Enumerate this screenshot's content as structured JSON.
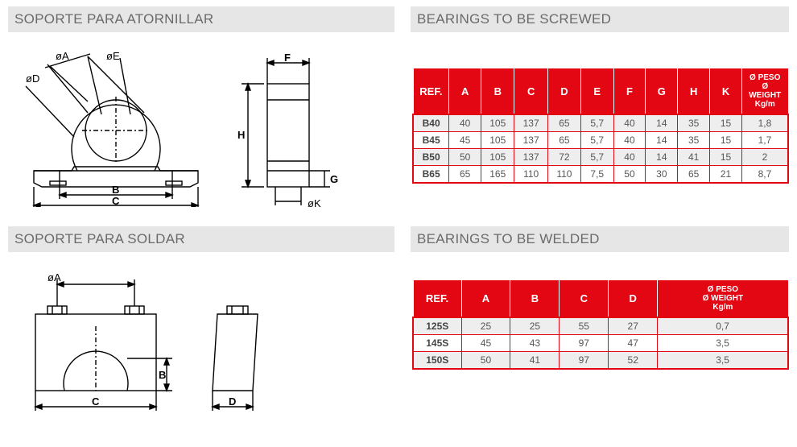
{
  "section1": {
    "title_left": "SOPORTE PARA ATORNILLAR",
    "title_right": "BEARINGS TO BE SCREWED",
    "table": {
      "headers": [
        "REF.",
        "A",
        "B",
        "C",
        "D",
        "E",
        "F",
        "G",
        "H",
        "K"
      ],
      "weight_h1": "Ø PESO",
      "weight_h2": "Ø WEIGHT",
      "weight_h3": "Kg/m",
      "rows": [
        [
          "B40",
          "40",
          "105",
          "137",
          "65",
          "5,7",
          "40",
          "14",
          "35",
          "15",
          "1,8"
        ],
        [
          "B45",
          "45",
          "105",
          "137",
          "65",
          "5,7",
          "40",
          "14",
          "35",
          "15",
          "1,7"
        ],
        [
          "B50",
          "50",
          "105",
          "137",
          "72",
          "5,7",
          "40",
          "14",
          "41",
          "15",
          "2"
        ],
        [
          "B65",
          "65",
          "165",
          "110",
          "110",
          "7,5",
          "50",
          "30",
          "65",
          "21",
          "8,7"
        ]
      ]
    }
  },
  "section2": {
    "title_left": "SOPORTE PARA SOLDAR",
    "title_right": "BEARINGS TO BE WELDED",
    "table": {
      "headers": [
        "REF.",
        "A",
        "B",
        "C",
        "D"
      ],
      "weight_h1": "Ø PESO",
      "weight_h2": "Ø WEIGHT",
      "weight_h3": "Kg/m",
      "rows": [
        [
          "125S",
          "25",
          "25",
          "55",
          "27",
          "0,7"
        ],
        [
          "145S",
          "45",
          "43",
          "97",
          "47",
          "3,5"
        ],
        [
          "150S",
          "50",
          "41",
          "97",
          "52",
          "3,5"
        ]
      ]
    }
  },
  "colors": {
    "header_bg": "#e30613",
    "border": "#e30613",
    "title_bg": "#e6e6e6",
    "title_fg": "#6a6a6a"
  },
  "dim_labels": {
    "oA": "øA",
    "oD": "øD",
    "oE": "øE",
    "oK": "øK",
    "B": "B",
    "C": "C",
    "D": "D",
    "F": "F",
    "G": "G",
    "H": "H"
  }
}
